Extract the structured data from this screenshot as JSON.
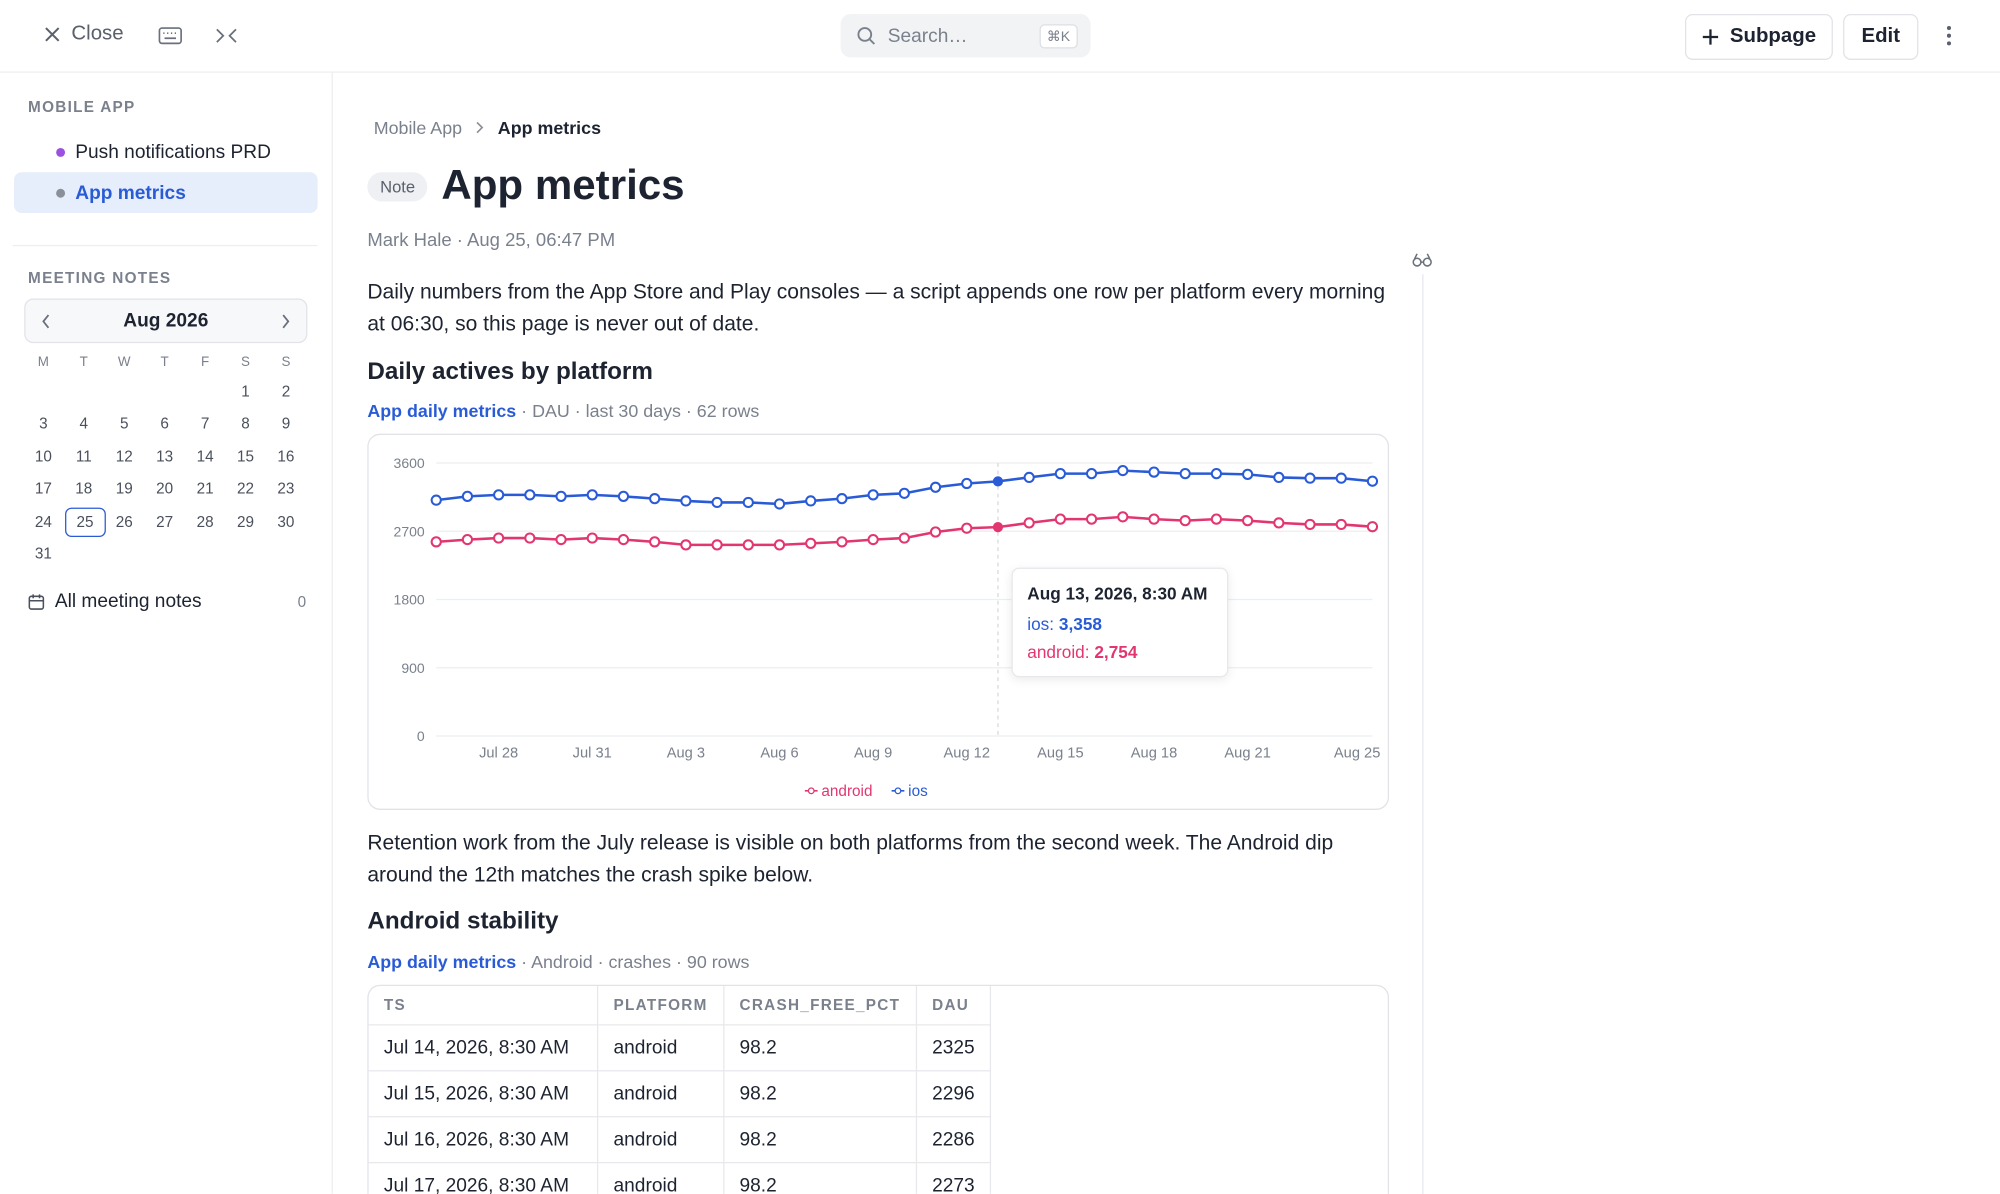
{
  "topbar": {
    "close": "Close",
    "search": "Search…",
    "shortcut": "⌘K",
    "subpage": "Subpage",
    "edit": "Edit"
  },
  "sidebar": {
    "section1": "MOBILE APP",
    "pages": [
      {
        "label": "Push notifications PRD",
        "color": "#9b51e0",
        "active": false
      },
      {
        "label": "App metrics",
        "color": "#8a8f98",
        "active": true
      }
    ],
    "section2": "MEETING NOTES",
    "calendar": {
      "month": "Aug 2026",
      "weekdays": [
        "M",
        "T",
        "W",
        "T",
        "F",
        "S",
        "S"
      ],
      "weeks": [
        [
          null,
          null,
          null,
          null,
          null,
          1,
          2
        ],
        [
          3,
          4,
          5,
          6,
          7,
          8,
          9
        ],
        [
          10,
          11,
          12,
          13,
          14,
          15,
          16
        ],
        [
          17,
          18,
          19,
          20,
          21,
          22,
          23
        ],
        [
          24,
          25,
          26,
          27,
          28,
          29,
          30
        ],
        [
          31,
          null,
          null,
          null,
          null,
          null,
          null
        ]
      ],
      "selected": 25
    },
    "all_notes": "All meeting notes",
    "all_notes_count": 0
  },
  "breadcrumb": [
    "Mobile App",
    "App metrics"
  ],
  "badge": "Note",
  "title": "App metrics",
  "meta": "Mark Hale · Aug 25, 06:47 PM",
  "paragraphs": [
    "Daily numbers from the App Store and Play consoles — a script appends one row per platform every morning at 06:30, so this page is never out of date.",
    "Retention work from the July release is visible on both platforms from the second week. The Android dip around the 12th matches the crash spike below."
  ],
  "sections": [
    {
      "heading": "Daily actives by platform",
      "source": "App daily metrics",
      "source_meta": "· DAU · last 30 days · 62 rows"
    },
    {
      "heading": "Android stability",
      "source": "App daily metrics",
      "source_meta": "· Android · crashes · 90 rows"
    }
  ],
  "chart_data": {
    "type": "line",
    "categories": [
      null,
      null,
      "Jul 28",
      null,
      null,
      "Jul 31",
      null,
      null,
      "Aug 3",
      null,
      null,
      "Aug 6",
      null,
      null,
      "Aug 9",
      null,
      null,
      "Aug 12",
      null,
      null,
      "Aug 15",
      null,
      null,
      "Aug 18",
      null,
      null,
      "Aug 21",
      null,
      null,
      null,
      "Aug 25"
    ],
    "series": [
      {
        "name": "android",
        "color": "#e23670",
        "values": [
          2560,
          2590,
          2610,
          2610,
          2590,
          2610,
          2590,
          2560,
          2520,
          2520,
          2520,
          2520,
          2540,
          2560,
          2590,
          2610,
          2690,
          2740,
          2754,
          2810,
          2860,
          2860,
          2890,
          2860,
          2840,
          2860,
          2840,
          2810,
          2790,
          2790,
          2760
        ]
      },
      {
        "name": "ios",
        "color": "#2a5bd7",
        "values": [
          3110,
          3160,
          3180,
          3180,
          3160,
          3180,
          3160,
          3130,
          3100,
          3080,
          3080,
          3060,
          3100,
          3130,
          3180,
          3200,
          3280,
          3330,
          3358,
          3410,
          3460,
          3460,
          3500,
          3480,
          3460,
          3460,
          3450,
          3410,
          3400,
          3400,
          3360
        ]
      }
    ],
    "ylim": [
      0,
      3600
    ],
    "yticks": [
      0,
      900,
      1800,
      2700,
      3600
    ],
    "grid": true,
    "legend": "bottom",
    "highlight_index": 18,
    "tooltip": {
      "title": "Aug 13, 2026, 8:30 AM",
      "lines": [
        {
          "key": "ios:",
          "value": "3,358",
          "color": "#2a5bd7"
        },
        {
          "key": "android:",
          "value": "2,754",
          "color": "#e23670"
        }
      ]
    }
  },
  "table": {
    "headers": [
      "TS",
      "PLATFORM",
      "CRASH_FREE_PCT",
      "DAU"
    ],
    "rows": [
      [
        "Jul 14, 2026, 8:30 AM",
        "android",
        98.2,
        2325
      ],
      [
        "Jul 15, 2026, 8:30 AM",
        "android",
        98.2,
        2296
      ],
      [
        "Jul 16, 2026, 8:30 AM",
        "android",
        98.2,
        2286
      ],
      [
        "Jul 17, 2026, 8:30 AM",
        "android",
        98.2,
        2273
      ]
    ]
  }
}
